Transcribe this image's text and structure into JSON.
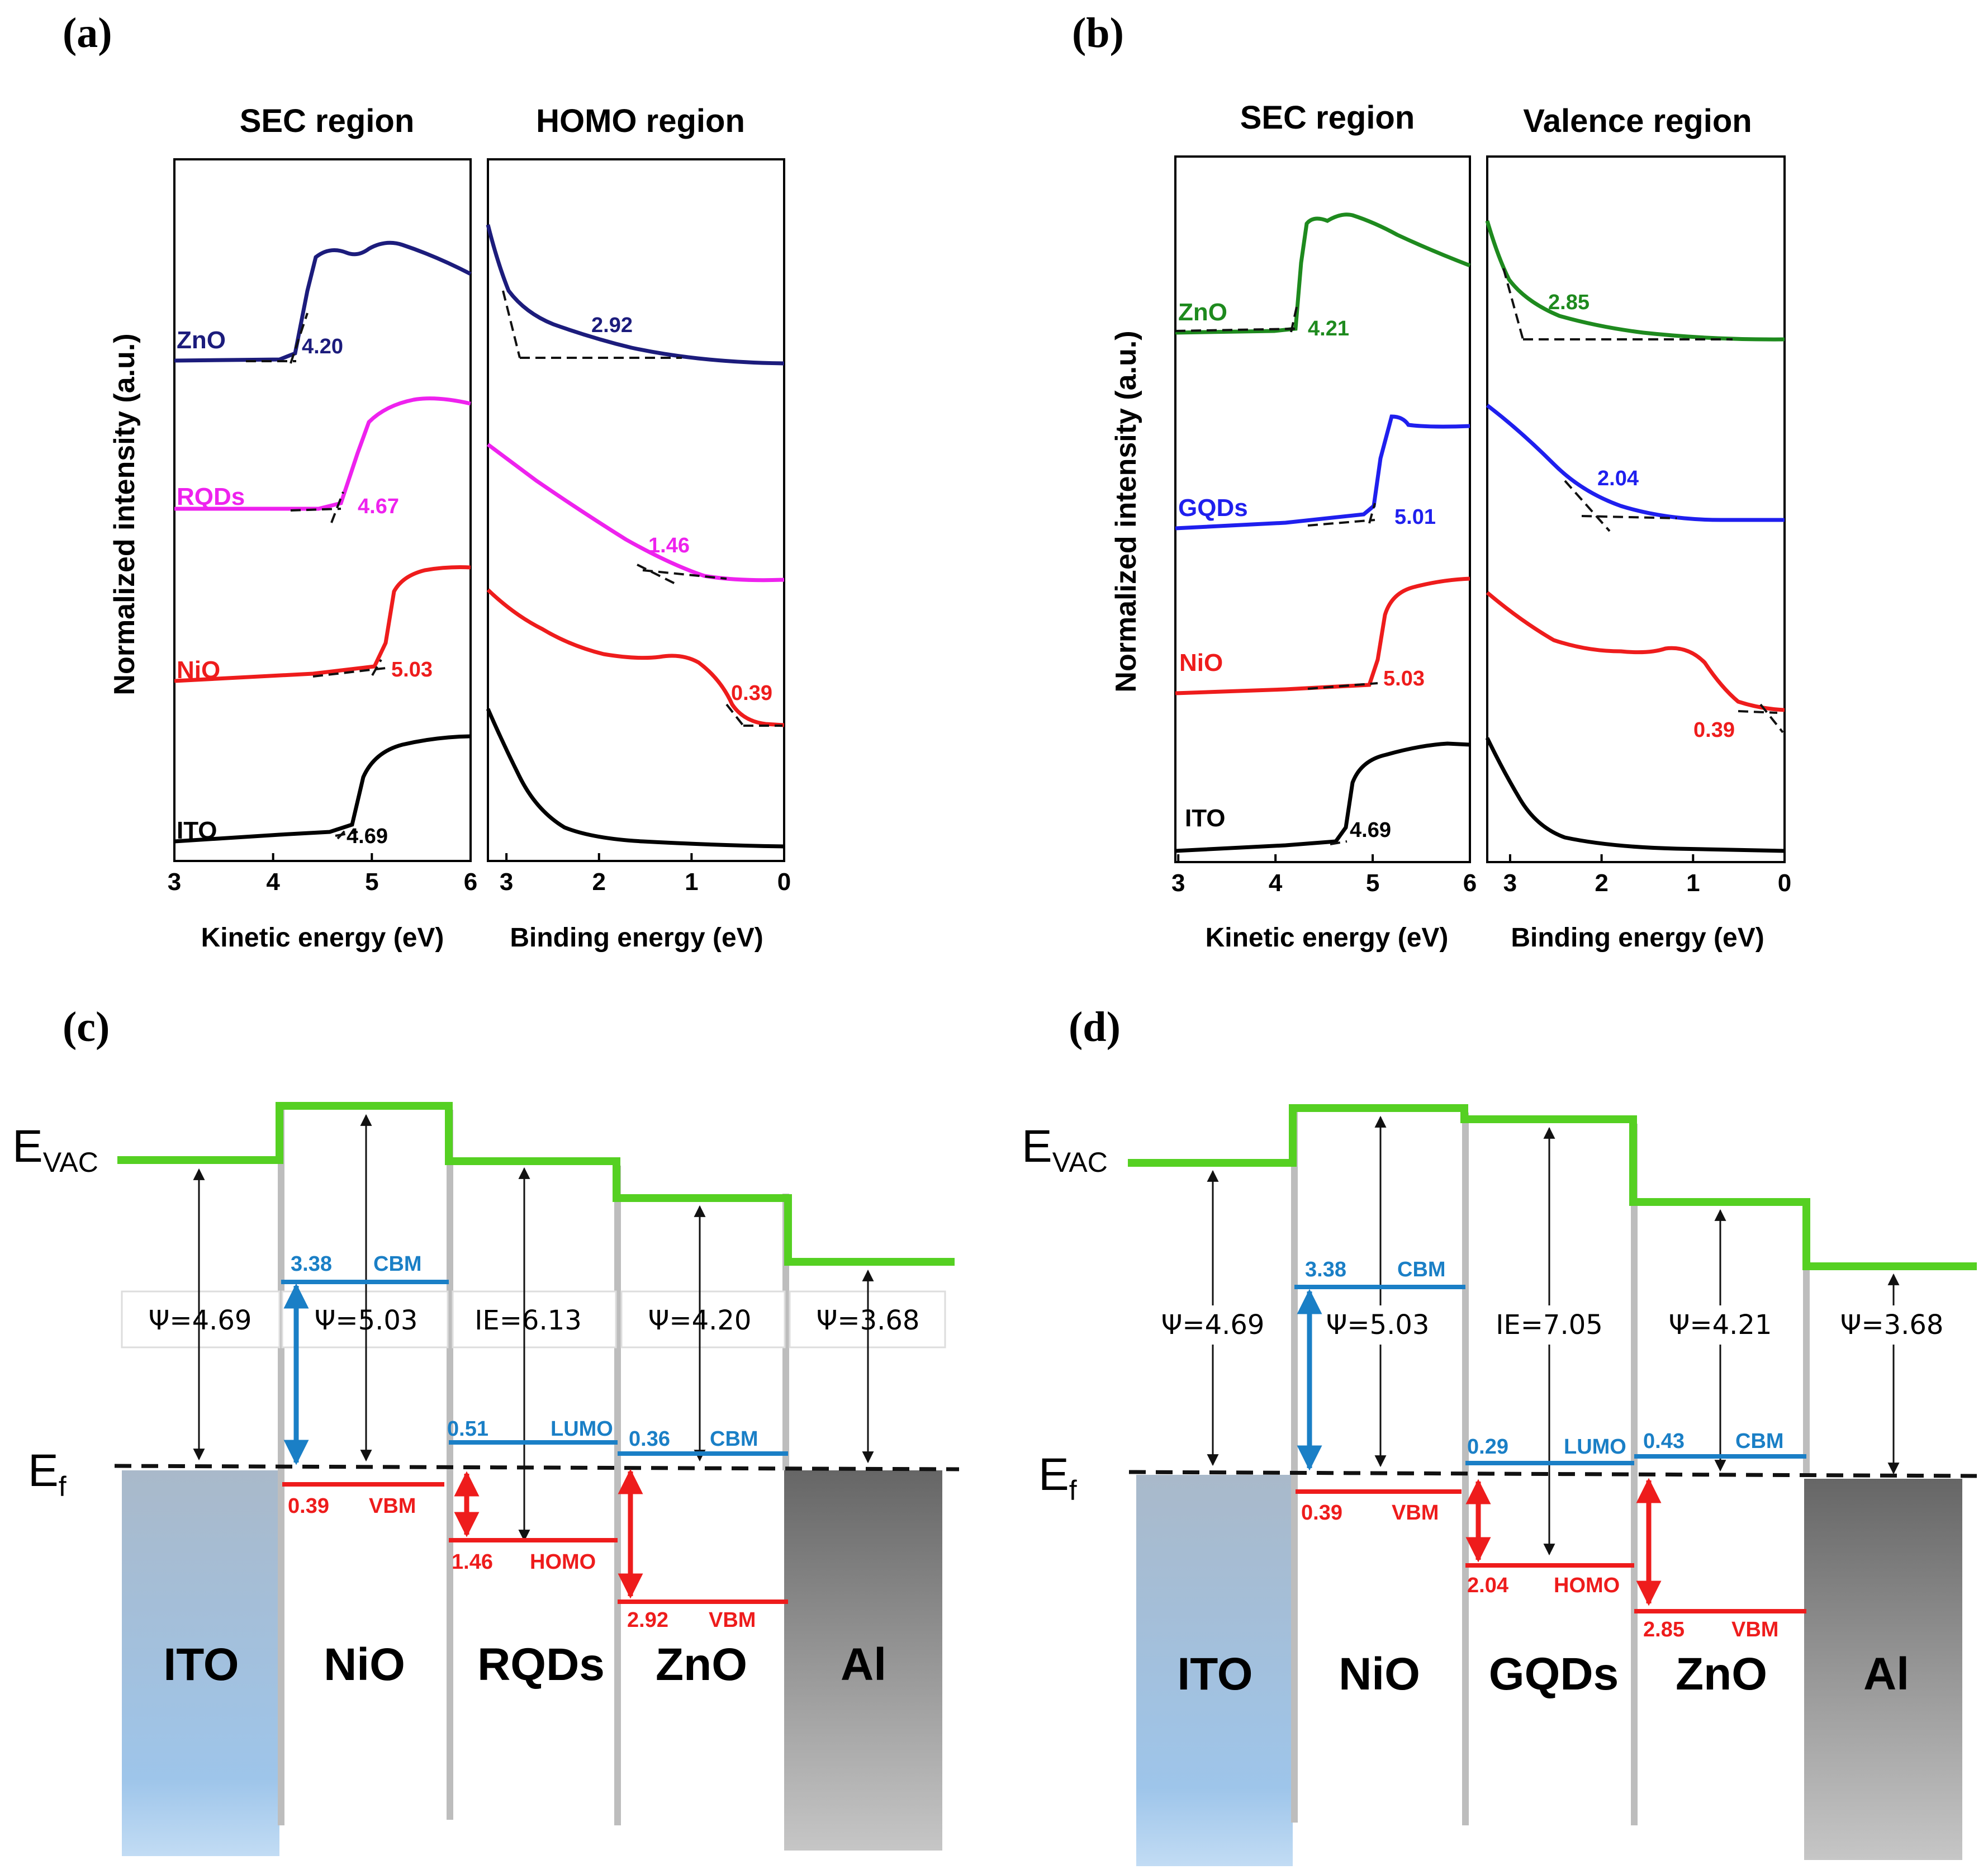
{
  "panels": {
    "a": {
      "tag": "(a)",
      "sec_header": "SEC region",
      "right_header": "HOMO region",
      "ylabel": "Normalized intensity (a.u.)",
      "xlabel_left": "Kinetic energy (eV)",
      "xlabel_right": "Binding energy (eV)",
      "ticks_left": [
        "3",
        "4",
        "5",
        "6"
      ],
      "ticks_right": [
        "3",
        "2",
        "1",
        "0"
      ],
      "sec_range_eV": [
        3,
        6
      ],
      "binding_range_eV": [
        3.2,
        0
      ],
      "spectra": [
        {
          "name": "ZnO",
          "color": "#1c1c7c",
          "sec_value": "4.20",
          "homo_value": "2.92"
        },
        {
          "name": "RQDs",
          "color": "#ee22ee",
          "sec_value": "4.67",
          "homo_value": "1.46"
        },
        {
          "name": "NiO",
          "color": "#ee1c1c",
          "sec_value": "5.03",
          "homo_value": "0.39"
        },
        {
          "name": "ITO",
          "color": "#000000",
          "sec_value": "4.69",
          "homo_value": ""
        }
      ]
    },
    "b": {
      "tag": "(b)",
      "sec_header": "SEC region",
      "right_header": "Valence region",
      "ylabel": "Normalized intensity (a.u.)",
      "xlabel_left": "Kinetic energy (eV)",
      "xlabel_right": "Binding energy (eV)",
      "ticks_left": [
        "3",
        "4",
        "5",
        "6"
      ],
      "ticks_right": [
        "3",
        "2",
        "1",
        "0"
      ],
      "sec_range_eV": [
        2.97,
        6
      ],
      "binding_range_eV": [
        3.25,
        0
      ],
      "spectra": [
        {
          "name": "ZnO",
          "color": "#1e8a1e",
          "sec_value": "4.21",
          "homo_value": "2.85"
        },
        {
          "name": "GQDs",
          "color": "#1f1fee",
          "sec_value": "5.01",
          "homo_value": "2.04"
        },
        {
          "name": "NiO",
          "color": "#ee1c1c",
          "sec_value": "5.03",
          "homo_value": "0.39"
        },
        {
          "name": "ITO",
          "color": "#000000",
          "sec_value": "4.69",
          "homo_value": ""
        }
      ]
    },
    "c": {
      "tag": "(c)",
      "evac": "E",
      "evac_sub": "VAC",
      "ef": "E",
      "ef_sub": "f",
      "layers": [
        {
          "name": "ITO",
          "psi": "Ψ=4.69"
        },
        {
          "name": "NiO",
          "psi": "Ψ=5.03",
          "top_value": "3.38",
          "top_label": "CBM",
          "bottom_value": "0.39",
          "bottom_label": "VBM"
        },
        {
          "name": "RQDs",
          "psi": "IE=6.13",
          "top_value": "0.51",
          "top_label": "LUMO",
          "bottom_value": "1.46",
          "bottom_label": "HOMO"
        },
        {
          "name": "ZnO",
          "psi": "Ψ=4.20",
          "top_value": "0.36",
          "top_label": "CBM",
          "bottom_value": "2.92",
          "bottom_label": "VBM"
        },
        {
          "name": "Al",
          "psi": "Ψ=3.68"
        }
      ]
    },
    "d": {
      "tag": "(d)",
      "evac": "E",
      "evac_sub": "VAC",
      "ef": "E",
      "ef_sub": "f",
      "layers": [
        {
          "name": "ITO",
          "psi": "Ψ=4.69"
        },
        {
          "name": "NiO",
          "psi": "Ψ=5.03",
          "top_value": "3.38",
          "top_label": "CBM",
          "bottom_value": "0.39",
          "bottom_label": "VBM"
        },
        {
          "name": "GQDs",
          "psi": "IE=7.05",
          "top_value": "0.29",
          "top_label": "LUMO",
          "bottom_value": "2.04",
          "bottom_label": "HOMO"
        },
        {
          "name": "ZnO",
          "psi": "Ψ=4.21",
          "top_value": "0.43",
          "top_label": "CBM",
          "bottom_value": "2.85",
          "bottom_label": "VBM"
        },
        {
          "name": "Al",
          "psi": "Ψ=3.68"
        }
      ]
    }
  },
  "colors": {
    "vacuum_level": "#55d022",
    "cbm_lumo": "#1a7fc6",
    "vbm_homo": "#ee1c1c",
    "ito_top": "#a9b9ca",
    "ito_bottom": "#9ec5ea",
    "al_top": "#666666",
    "al_bottom": "#c2c2c2",
    "divider": "#bdbdbd"
  }
}
